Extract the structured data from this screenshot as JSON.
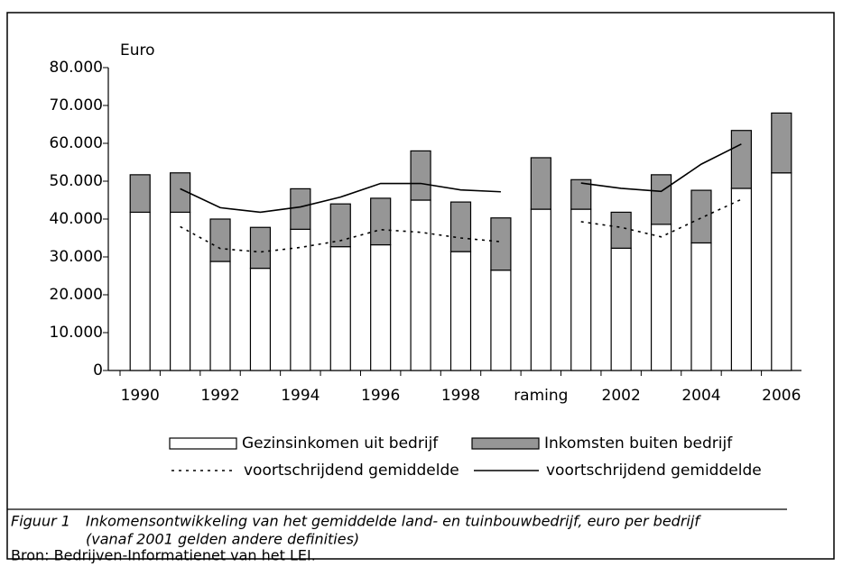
{
  "chart_data": {
    "type": "bar",
    "y_label": "Euro",
    "categories": [
      "1990",
      null,
      "1992",
      null,
      "1994",
      null,
      "1996",
      null,
      "1998",
      null,
      "raming",
      null,
      "2002",
      null,
      "2004",
      null,
      "2006"
    ],
    "series": [
      {
        "name": "Gezinsinkomen uit bedrijf",
        "color": "#ffffff",
        "values": [
          41.8,
          41.8,
          28.8,
          27,
          37.3,
          32.7,
          33.2,
          45,
          31.4,
          26.5,
          42.6,
          42.6,
          32.3,
          38.6,
          33.7,
          48.1,
          52.2
        ]
      },
      {
        "name": "Inkomsten buiten bedrijf",
        "color": "#969696",
        "values": [
          9.9,
          10.4,
          11.2,
          10.8,
          10.7,
          11.3,
          12.3,
          13,
          13.1,
          13.8,
          13.6,
          7.8,
          9.5,
          13.1,
          13.9,
          15.3,
          15.8
        ]
      },
      {
        "name": "voortschrijdend gemiddelde",
        "color": "#000000",
        "line_style": "dotted",
        "values": [
          null,
          38,
          32.2,
          31.3,
          32.5,
          34.3,
          37.2,
          36.5,
          35,
          34,
          null,
          39.3,
          37.8,
          35.3,
          40.3,
          45.2,
          null
        ]
      },
      {
        "name": "voortschrijdend gemiddelde",
        "color": "#000000",
        "line_style": "solid",
        "values": [
          null,
          48,
          43,
          41.8,
          43.2,
          45.8,
          49.4,
          49.4,
          47.7,
          47.2,
          null,
          49.5,
          48.1,
          47.3,
          54.5,
          59.8,
          null
        ]
      }
    ],
    "ylim": [
      0,
      80
    ],
    "yticks": [
      0,
      {
        "value": 10,
        "label": "10.000"
      },
      {
        "value": 20,
        "label": "20.000"
      },
      {
        "value": 30,
        "label": "30.000"
      },
      {
        "value": 40,
        "label": "40.000"
      },
      {
        "value": 50,
        "label": "50.000"
      },
      {
        "value": 60,
        "label": "60.000"
      },
      {
        "value": 70,
        "label": "70.000"
      },
      {
        "value": 80,
        "label": "80.000"
      }
    ],
    "caption": {
      "label": "Figuur 1",
      "text": "Inkomensontwikkeling van het gemiddelde land- en tuinbouwbedrijf, euro per bedrijf",
      "note": "(vanaf 2001 gelden andere definities)",
      "source": "Bron: Bedrijven-Informatienet van het LEI."
    }
  }
}
